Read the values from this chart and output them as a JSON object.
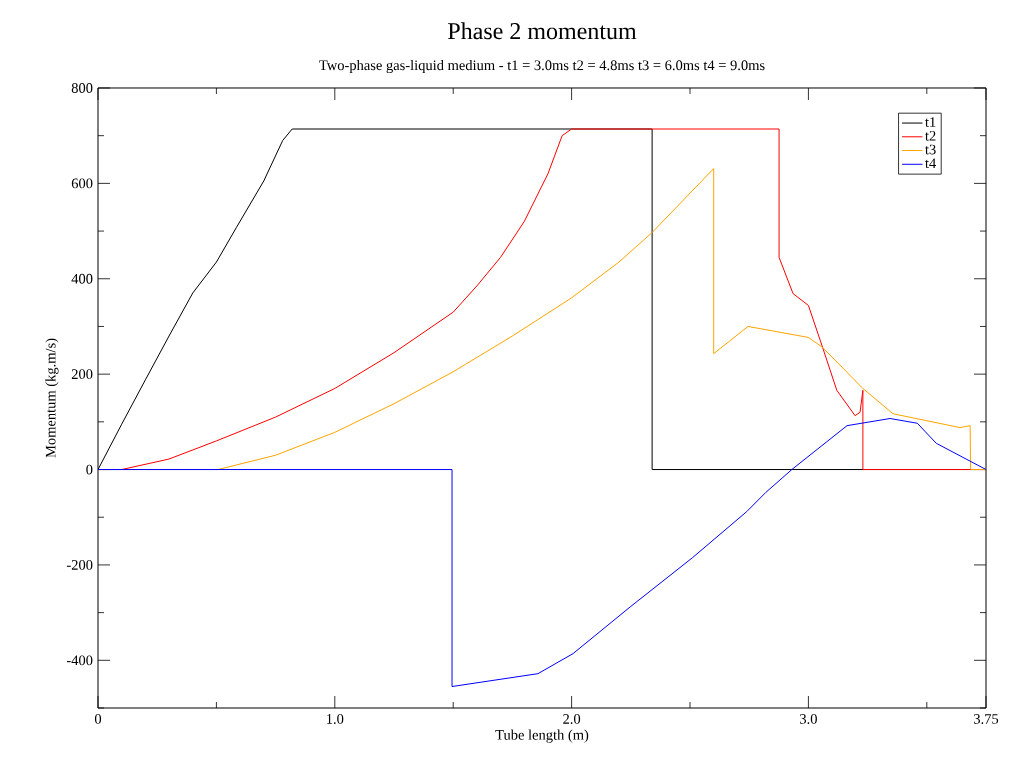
{
  "chart_data": {
    "type": "line",
    "title": "Phase 2 momentum",
    "subtitle": "Two-phase gas-liquid medium - t1 = 3.0ms t2 = 4.8ms t3 = 6.0ms t4 = 9.0ms",
    "xlabel": "Tube length (m)",
    "ylabel": "Momentum (kg.m/s)",
    "xlim": [
      0,
      3.75
    ],
    "ylim": [
      -500,
      800
    ],
    "xticks": [
      0,
      {
        "value": 0.5,
        "label": null
      },
      {
        "value": 1,
        "label": "1.0"
      },
      {
        "value": 1.5,
        "label": null
      },
      {
        "value": 2,
        "label": "2.0"
      },
      {
        "value": 2.5,
        "label": null
      },
      {
        "value": 3,
        "label": "3.0"
      },
      {
        "value": 3.5,
        "label": null
      },
      3.75
    ],
    "yticks": [
      {
        "value": -500,
        "label": null
      },
      -400,
      {
        "value": -300,
        "label": null
      },
      -200,
      {
        "value": -100,
        "label": null
      },
      0,
      {
        "value": 100,
        "label": null
      },
      200,
      {
        "value": 300,
        "label": null
      },
      400,
      {
        "value": 500,
        "label": null
      },
      600,
      {
        "value": 700,
        "label": null
      },
      800
    ],
    "grid": false,
    "legend": "top right",
    "marker": "none",
    "line_style": "solid",
    "series": [
      {
        "name": "t1",
        "color": "#000000",
        "x": [
          0,
          0.1,
          0.2,
          0.3,
          0.4,
          0.5,
          0.585,
          0.7,
          0.78,
          0.82,
          2.34,
          2.34,
          3.75
        ],
        "values": [
          0,
          95,
          188,
          280,
          370,
          435,
          508,
          605,
          690,
          714,
          714,
          0,
          0
        ]
      },
      {
        "name": "t2",
        "color": "#ff0000",
        "x": [
          0,
          0.1,
          0.3,
          0.5,
          0.75,
          1.0,
          1.25,
          1.5,
          1.6,
          1.7,
          1.8,
          1.9,
          1.96,
          2.0,
          2.876,
          2.876,
          2.935,
          3.0,
          3.06,
          3.12,
          3.197,
          3.218,
          3.23,
          3.23,
          3.75
        ],
        "values": [
          0,
          0,
          22,
          60,
          110,
          170,
          245,
          330,
          385,
          445,
          520,
          620,
          700,
          714,
          714,
          445,
          369,
          344,
          256,
          166,
          113,
          120,
          166,
          0,
          0
        ]
      },
      {
        "name": "t3",
        "color": "#ffa500",
        "x": [
          0,
          0.507,
          0.75,
          1.0,
          1.25,
          1.5,
          1.75,
          2.0,
          2.2,
          2.34,
          2.6,
          2.6,
          2.745,
          3.0,
          3.06,
          3.23,
          3.357,
          3.64,
          3.683,
          3.685,
          3.75
        ],
        "values": [
          0,
          0,
          30,
          78,
          138,
          205,
          280,
          360,
          435,
          497,
          631,
          243,
          300,
          277,
          256,
          170,
          117,
          88,
          92,
          0,
          0
        ]
      },
      {
        "name": "t4",
        "color": "#0000ff",
        "x": [
          0,
          1.495,
          1.495,
          1.858,
          2.006,
          2.25,
          2.51,
          2.74,
          2.82,
          2.93,
          3.163,
          3.345,
          3.46,
          3.54,
          3.75
        ],
        "values": [
          0,
          0,
          -455,
          -428,
          -386,
          -287,
          -185,
          -88,
          -48,
          0,
          92,
          107,
          97,
          55,
          0
        ]
      }
    ]
  }
}
